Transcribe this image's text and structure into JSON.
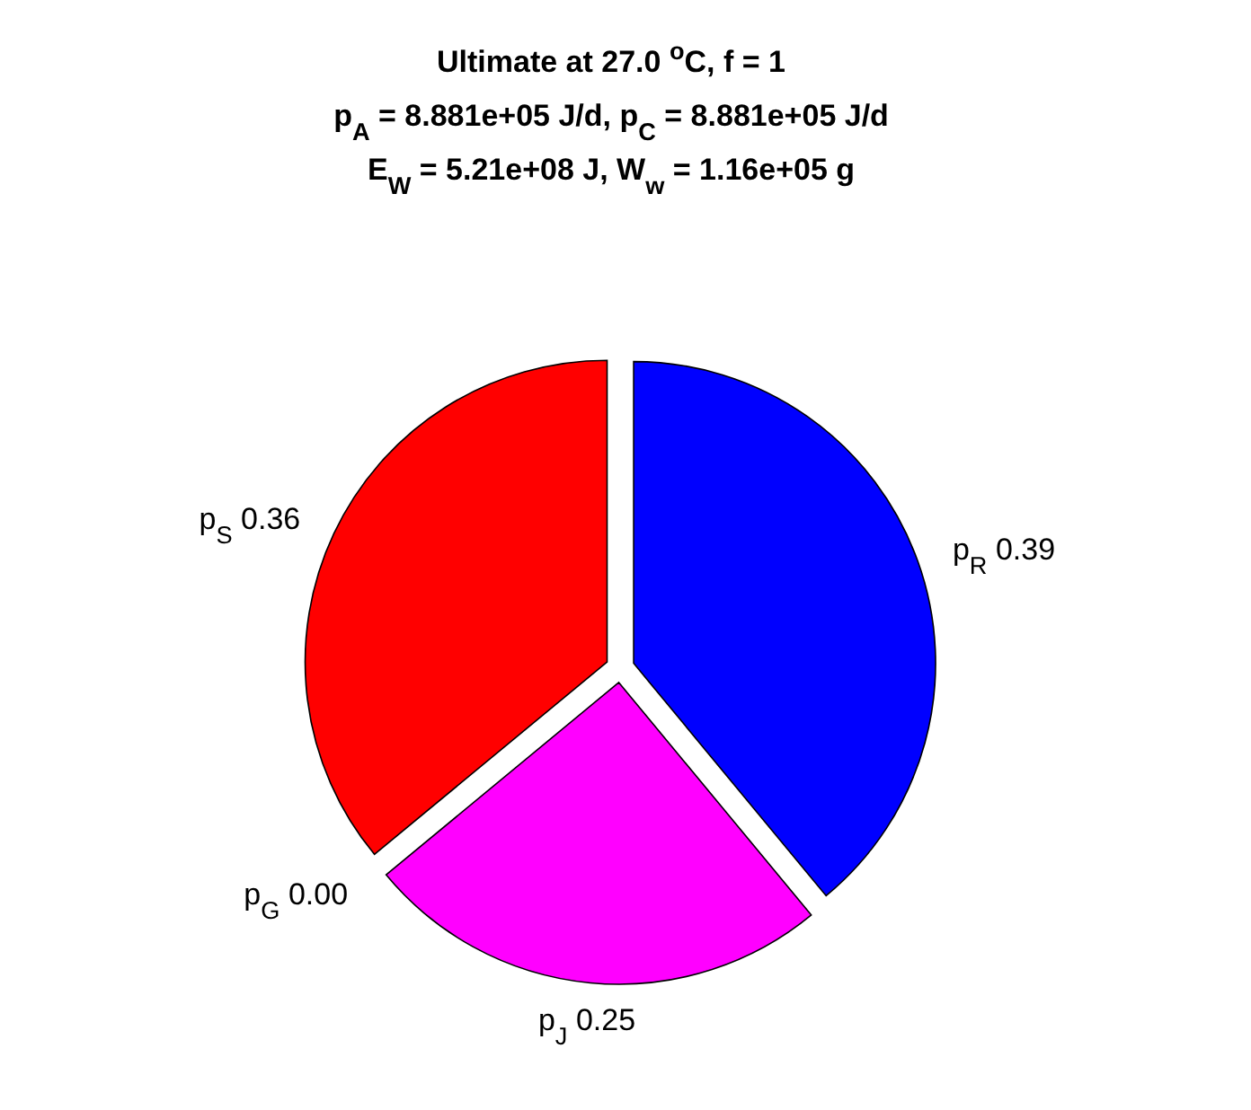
{
  "chart_data": {
    "type": "pie",
    "title": "Ultimate at 27.0 $^{o}$C, f = 1\np$_{A}$ = 8.881e+05 J/d, p$_{C}$ = 8.881e+05 J/d\nE$_{W}$ = 5.21e+08 J, W$_{w}$ = 1.16e+05 g",
    "categories": [
      "p$_{R}$",
      "p$_{J}$",
      "p$_{G}$",
      "p$_{S}$"
    ],
    "values": [
      0.39,
      0.25,
      0.0,
      0.36
    ],
    "colors": [
      "#0000ff",
      "#ff00ff",
      null,
      "#ff0000"
    ],
    "value_labels": [
      "0.39",
      "0.25",
      "0.00",
      "0.36"
    ]
  }
}
